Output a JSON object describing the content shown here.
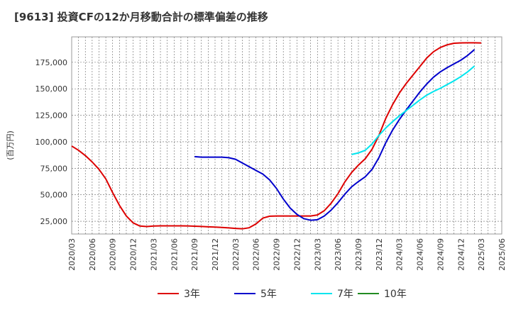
{
  "chart_data": {
    "type": "line",
    "title": "[9613]  投資CFの12か月移動合計の標準偏差の推移",
    "ylabel": "(百万円)",
    "xlabel": "",
    "x_ticks": [
      "2020/03",
      "2020/06",
      "2020/09",
      "2020/12",
      "2021/03",
      "2021/06",
      "2021/09",
      "2021/12",
      "2022/03",
      "2022/06",
      "2022/09",
      "2022/12",
      "2023/03",
      "2023/06",
      "2023/09",
      "2023/12",
      "2024/03",
      "2024/06",
      "2024/09",
      "2024/12",
      "2025/03",
      "2025/06"
    ],
    "y_ticks": [
      "25,000",
      "50,000",
      "75,000",
      "100,000",
      "125,000",
      "150,000",
      "175,000"
    ],
    "y_tick_values": [
      25000,
      50000,
      75000,
      100000,
      125000,
      150000,
      175000
    ],
    "ylim": [
      13000,
      199000
    ],
    "xlim": [
      "2020/03",
      "2025/06"
    ],
    "grid": true,
    "legend_position": "bottom",
    "series": [
      {
        "name": "3年",
        "color": "#dd0000",
        "start": "2020/03",
        "values": [
          96000,
          92000,
          87000,
          81000,
          74000,
          65000,
          52000,
          40000,
          30000,
          23500,
          20500,
          20000,
          20500,
          20700,
          20700,
          20700,
          20700,
          20600,
          20400,
          20100,
          19800,
          19500,
          19200,
          18800,
          18300,
          17900,
          18900,
          22500,
          28000,
          29800,
          30000,
          30000,
          30000,
          30000,
          30000,
          30000,
          31000,
          35000,
          42000,
          51000,
          62000,
          71000,
          78000,
          84000,
          93000,
          106000,
          122000,
          135000,
          146000,
          155000,
          163000,
          171000,
          179000,
          185000,
          189000,
          191500,
          193000,
          193300,
          193400,
          193400,
          193200
        ]
      },
      {
        "name": "5年",
        "color": "#0000cc",
        "start": "2021/09",
        "values": [
          86000,
          85500,
          85500,
          85500,
          85500,
          85000,
          83500,
          80000,
          76500,
          73000,
          69500,
          64000,
          56000,
          46000,
          37500,
          31500,
          27500,
          26000,
          26500,
          30000,
          35500,
          42500,
          50500,
          57500,
          62500,
          67000,
          74000,
          85000,
          99000,
          111000,
          121000,
          130000,
          138500,
          147000,
          154500,
          161000,
          166000,
          170000,
          173500,
          177000,
          181500,
          187000
        ]
      },
      {
        "name": "7年",
        "color": "#00e5ee",
        "start": "2023/08",
        "values": [
          88000,
          89500,
          92000,
          98000,
          106000,
          113000,
          119000,
          124500,
          129500,
          134500,
          139500,
          144000,
          147500,
          150500,
          154000,
          157500,
          161500,
          166000,
          171500
        ]
      },
      {
        "name": "10年",
        "color": "#228b22",
        "start": "2023/08",
        "values": []
      }
    ]
  }
}
